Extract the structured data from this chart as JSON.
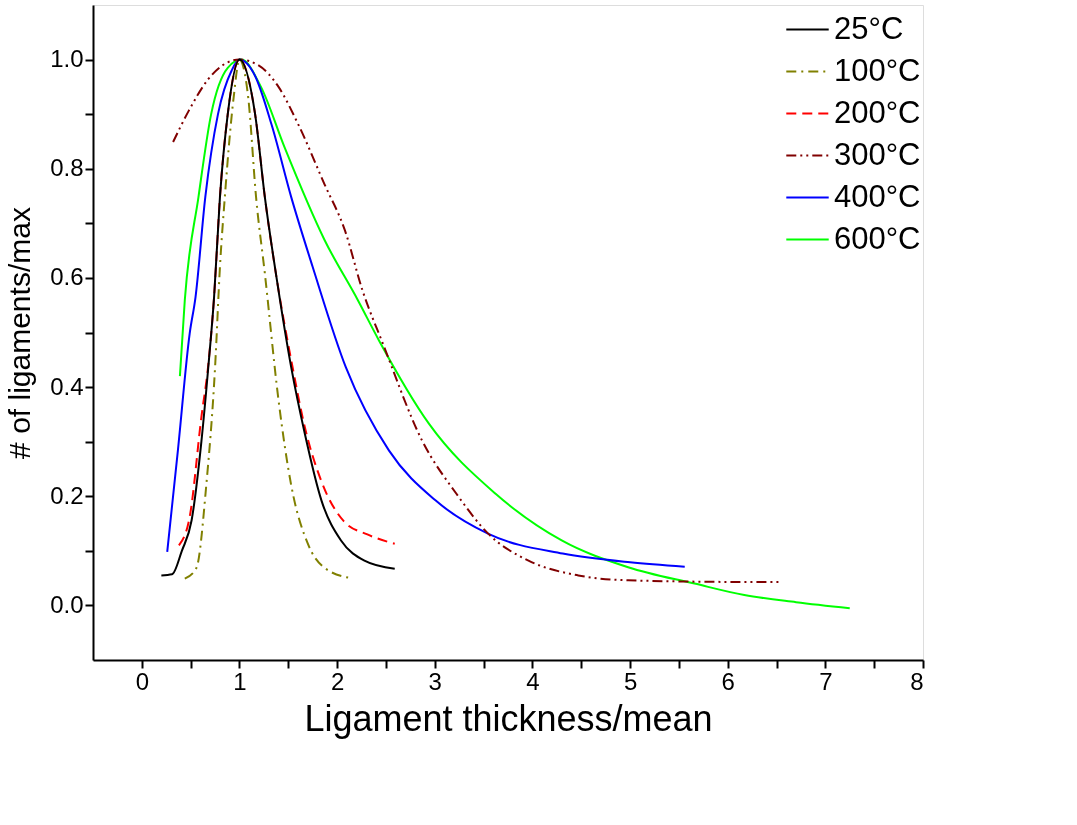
{
  "chart_data": {
    "type": "line",
    "xlabel": "Ligament thickness/mean",
    "ylabel": "# of ligaments/max",
    "xlim": [
      -0.5,
      8
    ],
    "ylim": [
      -0.1,
      1.1
    ],
    "xticks": [
      0,
      {
        "value": 0.5,
        "label": null
      },
      1,
      {
        "value": 1.5,
        "label": null
      },
      2,
      {
        "value": 2.5,
        "label": null
      },
      3,
      {
        "value": 3.5,
        "label": null
      },
      4,
      {
        "value": 4.5,
        "label": null
      },
      5,
      {
        "value": 5.5,
        "label": null
      },
      6,
      {
        "value": 6.5,
        "label": null
      },
      7,
      {
        "value": 7.5,
        "label": null
      },
      8
    ],
    "yticks": [
      {
        "value": 0,
        "label": "0.0"
      },
      {
        "value": 0.1,
        "label": null
      },
      0.2,
      {
        "value": 0.3,
        "label": null
      },
      0.4,
      {
        "value": 0.5,
        "label": null
      },
      0.6,
      {
        "value": 0.7,
        "label": null
      },
      0.8,
      {
        "value": 0.9,
        "label": null
      },
      {
        "value": 1,
        "label": "1.0"
      }
    ],
    "grid": false,
    "legend": "top right",
    "marker": "none",
    "series": [
      {
        "name": "25°C",
        "color": "#000000",
        "line_style": "solid",
        "x": [
          0.2,
          0.31,
          0.41,
          0.51,
          0.61,
          0.68,
          0.74,
          0.8,
          0.88,
          1.0,
          1.16,
          1.26,
          1.38,
          1.53,
          1.67,
          1.84,
          2.04,
          2.28,
          2.59
        ],
        "values": [
          0.055,
          0.057,
          0.1,
          0.156,
          0.3,
          0.435,
          0.565,
          0.748,
          0.9,
          1.0,
          0.9,
          0.748,
          0.6,
          0.436,
          0.314,
          0.192,
          0.119,
          0.082,
          0.067
        ]
      },
      {
        "name": "100°C",
        "color": "#808000",
        "line_style": "dashdot",
        "x": [
          0.44,
          0.56,
          0.66,
          0.75,
          0.8,
          0.85,
          0.94,
          1.0,
          1.09,
          1.17,
          1.26,
          1.4,
          1.53,
          1.7,
          1.87,
          2.14
        ],
        "values": [
          0.049,
          0.069,
          0.22,
          0.436,
          0.62,
          0.748,
          0.93,
          1.0,
          0.93,
          0.748,
          0.608,
          0.376,
          0.22,
          0.113,
          0.069,
          0.05
        ]
      },
      {
        "name": "200°C",
        "color": "#ff0000",
        "line_style": "dashed",
        "x": [
          0.38,
          0.49,
          0.61,
          0.68,
          0.74,
          0.8,
          0.88,
          1.0,
          1.16,
          1.26,
          1.38,
          1.54,
          1.67,
          1.84,
          2.07,
          2.31,
          2.59
        ],
        "values": [
          0.11,
          0.162,
          0.345,
          0.44,
          0.565,
          0.748,
          0.9,
          1.0,
          0.9,
          0.748,
          0.6,
          0.44,
          0.326,
          0.227,
          0.154,
          0.13,
          0.113
        ]
      },
      {
        "name": "300°C",
        "color": "#800000",
        "line_style": "dashdotdot",
        "x": [
          0.32,
          0.48,
          0.68,
          0.88,
          1.0,
          1.19,
          1.4,
          1.6,
          1.87,
          2.08,
          2.26,
          2.47,
          2.87,
          3.22,
          3.55,
          3.96,
          4.47,
          4.98,
          6.17,
          6.55
        ],
        "values": [
          0.849,
          0.906,
          0.964,
          0.995,
          1.0,
          0.99,
          0.95,
          0.882,
          0.772,
          0.687,
          0.577,
          0.479,
          0.302,
          0.205,
          0.131,
          0.082,
          0.055,
          0.046,
          0.043,
          0.043
        ]
      },
      {
        "name": "400°C",
        "color": "#0000ff",
        "line_style": "solid",
        "x": [
          0.26,
          0.37,
          0.49,
          0.55,
          0.65,
          0.78,
          0.92,
          1.0,
          1.16,
          1.33,
          1.53,
          1.75,
          2.09,
          2.53,
          3.01,
          3.55,
          4.31,
          5.0,
          5.56
        ],
        "values": [
          0.098,
          0.285,
          0.498,
          0.565,
          0.748,
          0.9,
          0.98,
          1.0,
          0.97,
          0.88,
          0.748,
          0.62,
          0.436,
          0.284,
          0.192,
          0.131,
          0.095,
          0.079,
          0.071
        ]
      },
      {
        "name": "600°C",
        "color": "#00ff00",
        "line_style": "solid",
        "x": [
          0.39,
          0.44,
          0.58,
          0.71,
          0.88,
          1.02,
          1.22,
          1.46,
          1.87,
          2.21,
          2.43,
          2.94,
          3.62,
          4.3,
          4.98,
          5.66,
          6.17,
          6.7,
          7.25
        ],
        "values": [
          0.42,
          0.559,
          0.748,
          0.9,
          0.985,
          1.0,
          0.95,
          0.84,
          0.67,
          0.56,
          0.485,
          0.333,
          0.205,
          0.119,
          0.07,
          0.04,
          0.019,
          0.006,
          -0.005
        ]
      }
    ]
  }
}
